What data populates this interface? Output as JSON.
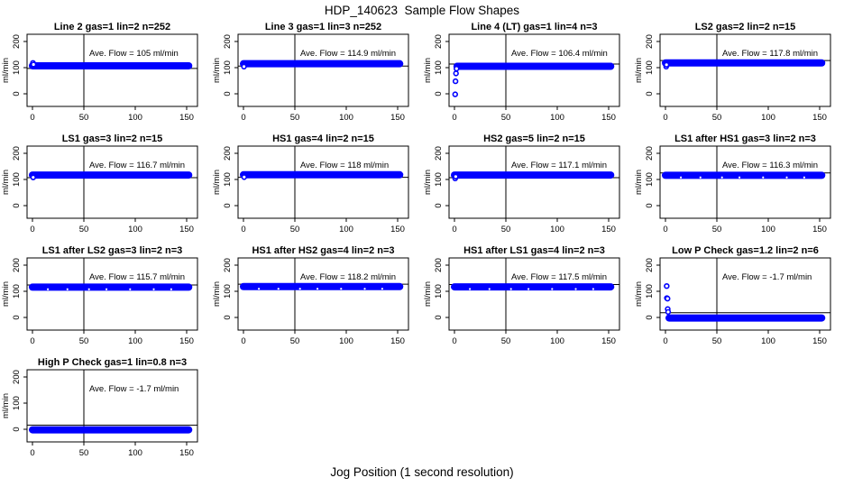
{
  "colors": {
    "points": "#0000ff",
    "axis": "#000000",
    "background": "#ffffff"
  },
  "chart_data": {
    "type": "scatter",
    "layout": "4x4 panel grid, 13 panels",
    "title": "HDP_140623  Sample Flow Shapes",
    "xlabel": "Jog Position (1 second resolution)",
    "ylabel": "ml/min",
    "xticks": [
      0,
      50,
      100,
      150
    ],
    "yticks": [
      0,
      100,
      200
    ],
    "xlim": [
      -6,
      158
    ],
    "ylim": [
      -45,
      230
    ],
    "vline_x": 50,
    "grid": "off",
    "legend": "none",
    "ave_prefix": "Ave. Flow =",
    "ave_suffix": "ml/min",
    "panels": [
      {
        "title": "Line 2 gas=1 lin=2 n=252",
        "ave_flow": "105",
        "band_y": 107,
        "band_x": [
          0,
          152
        ],
        "ref_line_y": 97,
        "start_points": [
          [
            0.5,
            118
          ],
          [
            1,
            112
          ]
        ],
        "speckled": false
      },
      {
        "title": "Line 3 gas=1 lin=3 n=252",
        "ave_flow": "114.9",
        "band_y": 115,
        "band_x": [
          0,
          152
        ],
        "ref_line_y": 106,
        "start_points": [
          [
            0.5,
            104
          ]
        ],
        "speckled": false
      },
      {
        "title": "Line 4 (LT) gas=1 lin=4 n=3",
        "ave_flow": "106.4",
        "band_y": 105,
        "band_x": [
          2.5,
          152
        ],
        "ref_line_y": 114,
        "start_points": [
          [
            0.7,
            -2
          ],
          [
            1,
            48
          ],
          [
            1.5,
            78
          ],
          [
            2,
            96
          ]
        ],
        "speckled": false
      },
      {
        "title": "LS2 gas=2 lin=2 n=15",
        "ave_flow": "117.8",
        "band_y": 118,
        "band_x": [
          0,
          152
        ],
        "ref_line_y": 127,
        "start_points": [
          [
            0.7,
            104
          ],
          [
            1,
            111
          ]
        ],
        "speckled": false
      },
      {
        "title": "LS1 gas=3 lin=2 n=15",
        "ave_flow": "116.7",
        "band_y": 117,
        "band_x": [
          0,
          152
        ],
        "ref_line_y": 107,
        "start_points": [
          [
            0.7,
            108
          ]
        ],
        "speckled": false
      },
      {
        "title": "HS1 gas=4 lin=2 n=15",
        "ave_flow": "118",
        "band_y": 118,
        "band_x": [
          0,
          152
        ],
        "ref_line_y": 108,
        "start_points": [
          [
            0.7,
            109
          ]
        ],
        "speckled": false
      },
      {
        "title": "HS2 gas=5 lin=2 n=15",
        "ave_flow": "117.1",
        "band_y": 117,
        "band_x": [
          0,
          152
        ],
        "ref_line_y": 107,
        "start_points": [
          [
            0.7,
            104
          ],
          [
            1.2,
            111
          ]
        ],
        "speckled": false
      },
      {
        "title": "LS1 after HS1 gas=3 lin=2 n=3",
        "ave_flow": "116.3",
        "band_y": 116,
        "band_x": [
          0,
          152
        ],
        "ref_line_y": 125,
        "start_points": [],
        "speckled": true
      },
      {
        "title": "LS1 after LS2 gas=3 lin=2 n=3",
        "ave_flow": "115.7",
        "band_y": 116,
        "band_x": [
          0,
          152
        ],
        "ref_line_y": 124,
        "start_points": [],
        "speckled": true
      },
      {
        "title": "HS1 after HS2 gas=4 lin=2 n=3",
        "ave_flow": "118.2",
        "band_y": 118,
        "band_x": [
          0,
          152
        ],
        "ref_line_y": 127,
        "start_points": [],
        "speckled": true
      },
      {
        "title": "HS1 after LS1 gas=4 lin=2 n=3",
        "ave_flow": "117.5",
        "band_y": 117,
        "band_x": [
          0,
          152
        ],
        "ref_line_y": 126,
        "start_points": [],
        "speckled": true
      },
      {
        "title": "Low P Check gas=1.2 lin=2 n=6",
        "ave_flow": "-1.7",
        "band_y": -2,
        "band_x": [
          3.5,
          152
        ],
        "ref_line_y": 18,
        "start_points": [
          [
            1.2,
            120
          ],
          [
            1.4,
            74
          ],
          [
            2,
            72
          ],
          [
            2.2,
            32
          ],
          [
            2.6,
            21
          ]
        ],
        "speckled": false
      },
      {
        "title": "High P Check gas=1 lin=0.8 n=3",
        "ave_flow": "-1.7",
        "band_y": -2,
        "band_x": [
          0,
          152
        ],
        "ref_line_y": 16,
        "start_points": [],
        "speckled": false
      }
    ]
  }
}
